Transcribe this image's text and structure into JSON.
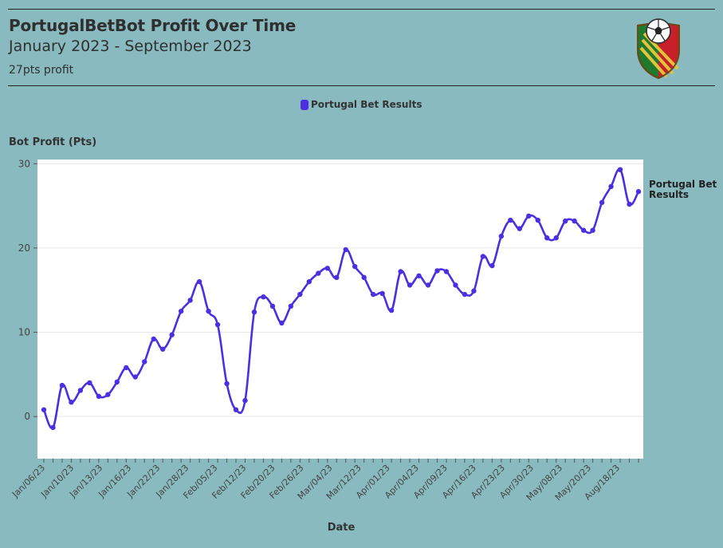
{
  "header": {
    "title": "PortugalBetBot Profit Over Time",
    "subtitle": "January 2023 - September 2023",
    "caption": "27pts profit",
    "logo_icon": "portugal-football-shield-logo"
  },
  "colors": {
    "background": "#88babf",
    "plot_background": "#ffffff",
    "series": "#4b2fe0"
  },
  "chart_data": {
    "type": "line",
    "title": "PortugalBetBot Profit Over Time",
    "subtitle": "January 2023 - September 2023",
    "ylabel": "Bot Profit (Pts)",
    "xlabel": "Date",
    "ylim": [
      -5,
      30.5
    ],
    "yticks": [
      0,
      10,
      20,
      30
    ],
    "xtick_labels": [
      "Jan/06/23",
      "Jan/10/23",
      "Jan/13/23",
      "Jan/16/23",
      "Jan/22/23",
      "Jan/28/23",
      "Feb/05/23",
      "Feb/12/23",
      "Feb/20/23",
      "Feb/26/23",
      "Mar/04/23",
      "Mar/12/23",
      "Apr/01/23",
      "Apr/04/23",
      "Apr/09/23",
      "Apr/16/23",
      "Apr/23/23",
      "Apr/30/23",
      "May/08/23",
      "May/20/23",
      "Aug/18/23"
    ],
    "grid": true,
    "legend": "top-center",
    "series": [
      {
        "name": "Portugal Bet Results",
        "end_label": "Portugal Bet Results",
        "values": [
          0.8,
          -1.3,
          3.7,
          1.7,
          3.1,
          4.0,
          2.4,
          2.6,
          4.1,
          5.8,
          4.7,
          6.5,
          9.2,
          8.0,
          9.7,
          12.5,
          13.8,
          16.0,
          12.5,
          10.9,
          3.9,
          0.8,
          1.9,
          12.4,
          14.2,
          13.1,
          11.1,
          13.1,
          14.5,
          16.0,
          17.0,
          17.6,
          16.5,
          19.8,
          17.8,
          16.5,
          14.5,
          14.6,
          12.6,
          17.2,
          15.6,
          16.7,
          15.6,
          17.3,
          17.2,
          15.6,
          14.5,
          14.9,
          19.0,
          17.9,
          21.4,
          23.3,
          22.3,
          23.8,
          23.3,
          21.2,
          21.2,
          23.2,
          23.2,
          22.1,
          22.1,
          25.4,
          27.3,
          29.3,
          25.2,
          26.7
        ]
      }
    ]
  }
}
